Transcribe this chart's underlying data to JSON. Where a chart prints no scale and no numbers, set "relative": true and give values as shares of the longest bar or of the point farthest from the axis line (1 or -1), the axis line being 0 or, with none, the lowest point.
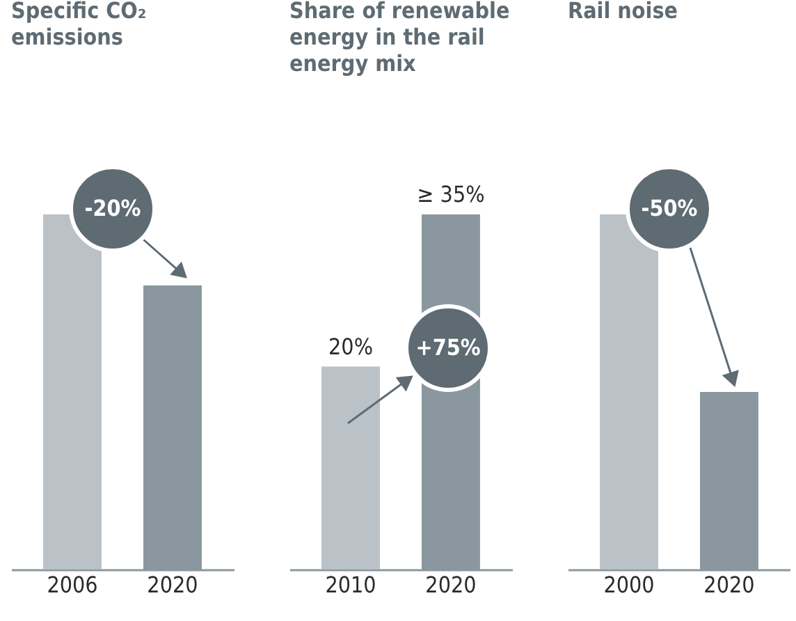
{
  "chart_data": [
    {
      "type": "bar",
      "title": "Specific CO₂ emissions",
      "relative": true,
      "categories": [
        "2006",
        "2020"
      ],
      "values": [
        1,
        0.8
      ],
      "colors": [
        "#bac2c8",
        "#8a979e"
      ],
      "annotations": [
        "-20%"
      ]
    },
    {
      "type": "bar",
      "title": "Share of renewable energy in the rail energy mix",
      "ylim": [
        0,
        35
      ],
      "categories": [
        "2010",
        "2020"
      ],
      "values": [
        20,
        35
      ],
      "colors": [
        "#bac2c8",
        "#8a979e"
      ],
      "value_labels": [
        "20%",
        "≥ 35%"
      ],
      "annotations": [
        "+75%"
      ]
    },
    {
      "type": "bar",
      "title": "Rail noise",
      "relative": true,
      "categories": [
        "2000",
        "2020"
      ],
      "values": [
        1,
        0.5
      ],
      "colors": [
        "#bac2c8",
        "#8a979e"
      ],
      "annotations": [
        "-50%"
      ]
    }
  ]
}
